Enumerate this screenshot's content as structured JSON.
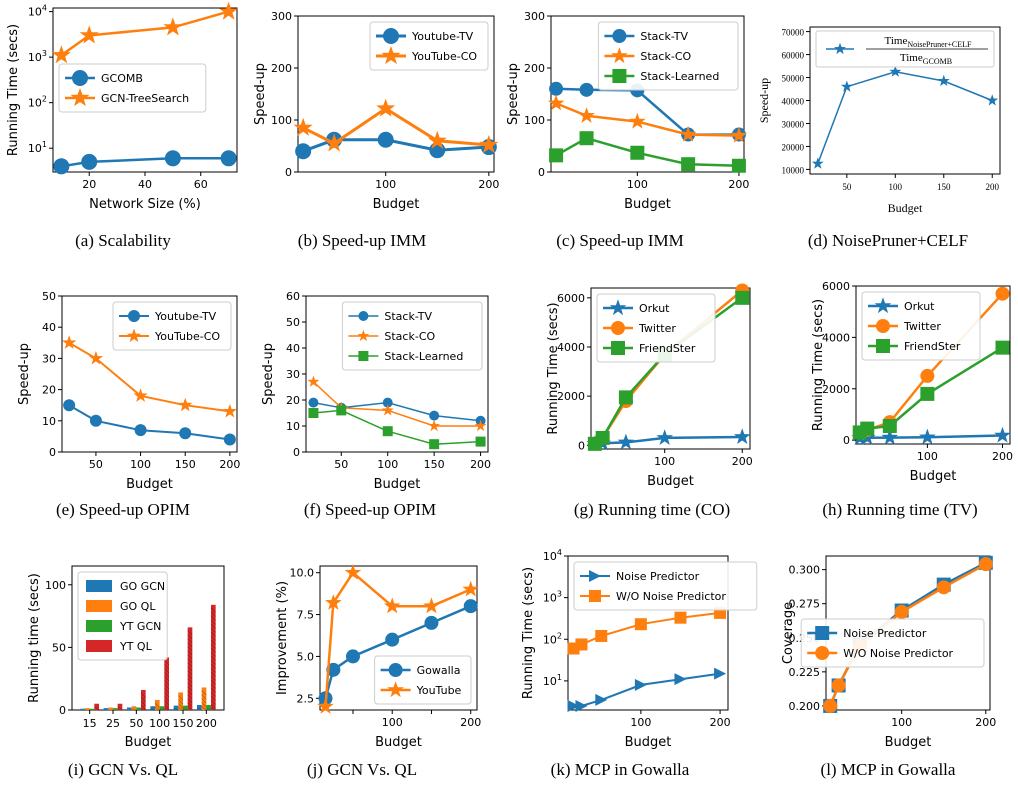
{
  "colors": {
    "blue": "#1f77b4",
    "orange": "#ff7f0e",
    "green": "#2ca02c",
    "red": "#d62728"
  },
  "chart_data": [
    {
      "caption": "(a) Scalability",
      "type": "line",
      "xlabel": "Network Size (%)",
      "ylabel": "Running Time (secs)",
      "xlim": [
        7,
        73
      ],
      "ylim": [
        3,
        12000
      ],
      "yscale": "log",
      "xticks": [
        20,
        40,
        60
      ],
      "xtick_labels": [
        "20",
        "40",
        "60"
      ],
      "yticks": [
        10,
        100,
        1000,
        10000
      ],
      "ytick_labels": [
        "10^1",
        "10^2",
        "10^3",
        "10^4"
      ],
      "legend": "center-left",
      "series": [
        {
          "name": "GCOMB",
          "color": "blue",
          "marker": "circle",
          "x": [
            10,
            20,
            50,
            70
          ],
          "y": [
            4,
            5,
            6,
            6
          ]
        },
        {
          "name": "GCN-TreeSearch",
          "color": "orange",
          "marker": "star",
          "x": [
            10,
            20,
            50,
            70
          ],
          "y": [
            1100,
            3000,
            4500,
            10000
          ]
        }
      ]
    },
    {
      "caption": "(b) Speed-up IMM",
      "type": "line",
      "xlabel": "Budget",
      "ylabel": "Speed-up",
      "xlim": [
        15,
        205
      ],
      "ylim": [
        0,
        300
      ],
      "xticks": [
        100,
        200
      ],
      "xtick_labels": [
        "100",
        "200"
      ],
      "yticks": [
        0,
        100,
        200,
        300
      ],
      "ytick_labels": [
        "0",
        "100",
        "200",
        "300"
      ],
      "legend": "top-right",
      "series": [
        {
          "name": "Youtube-TV",
          "color": "blue",
          "marker": "circle",
          "x": [
            20,
            50,
            100,
            150,
            200
          ],
          "y": [
            40,
            62,
            62,
            42,
            48
          ]
        },
        {
          "name": "YouTube-CO",
          "color": "orange",
          "marker": "star",
          "x": [
            20,
            50,
            100,
            150,
            200
          ],
          "y": [
            85,
            55,
            122,
            60,
            52
          ]
        }
      ]
    },
    {
      "caption": "(c) Speed-up IMM",
      "type": "line",
      "xlabel": "Budget",
      "ylabel": "Speed-up",
      "xlim": [
        15,
        205
      ],
      "ylim": [
        0,
        300
      ],
      "xticks": [
        100,
        200
      ],
      "xtick_labels": [
        "100",
        "200"
      ],
      "yticks": [
        0,
        100,
        200,
        300
      ],
      "ytick_labels": [
        "0",
        "100",
        "200",
        "300"
      ],
      "legend": "top-right",
      "series": [
        {
          "name": "Stack-TV",
          "color": "blue",
          "marker": "circle",
          "x": [
            20,
            50,
            100,
            150,
            200
          ],
          "y": [
            160,
            158,
            157,
            72,
            72
          ]
        },
        {
          "name": "Stack-CO",
          "color": "orange",
          "marker": "star",
          "x": [
            20,
            50,
            100,
            150,
            200
          ],
          "y": [
            132,
            108,
            97,
            72,
            70
          ]
        },
        {
          "name": "Stack-Learned",
          "color": "green",
          "marker": "square",
          "x": [
            20,
            50,
            100,
            150,
            200
          ],
          "y": [
            32,
            65,
            37,
            15,
            12
          ]
        }
      ]
    },
    {
      "caption": "(d) NoisePruner+CELF",
      "type": "line",
      "xlabel": "Budget",
      "ylabel": "Speed-up",
      "xlim": [
        12,
        208
      ],
      "ylim": [
        8000,
        72000
      ],
      "xticks": [
        50,
        100,
        150,
        200
      ],
      "xtick_labels": [
        "50",
        "100",
        "150",
        "200"
      ],
      "yticks": [
        10000,
        20000,
        30000,
        40000,
        50000,
        60000,
        70000
      ],
      "ytick_labels": [
        "10000",
        "20000",
        "30000",
        "40000",
        "50000",
        "60000",
        "70000"
      ],
      "legend": "top-left",
      "legend_numerator": "Time",
      "legend_numerator_sub": "NoisePruner+CELF",
      "legend_denominator": "Time",
      "legend_denominator_sub": "GCOMB",
      "series": [
        {
          "name": "",
          "color": "blue",
          "marker": "star",
          "x": [
            20,
            50,
            100,
            150,
            200
          ],
          "y": [
            12500,
            46000,
            52500,
            48500,
            40000
          ]
        }
      ]
    },
    {
      "caption": "(e) Speed-up OPIM",
      "type": "line",
      "xlabel": "Budget",
      "ylabel": "Speed-up",
      "xlim": [
        12,
        208
      ],
      "ylim": [
        0,
        50
      ],
      "xticks": [
        50,
        100,
        150,
        200
      ],
      "xtick_labels": [
        "50",
        "100",
        "150",
        "200"
      ],
      "yticks": [
        0,
        10,
        20,
        30,
        40,
        50
      ],
      "ytick_labels": [
        "0",
        "10",
        "20",
        "30",
        "40",
        "50"
      ],
      "legend": "top-right",
      "series": [
        {
          "name": "Youtube-TV",
          "color": "blue",
          "marker": "circle",
          "x": [
            20,
            50,
            100,
            150,
            200
          ],
          "y": [
            15,
            10,
            7,
            6,
            4
          ]
        },
        {
          "name": "YouTube-CO",
          "color": "orange",
          "marker": "star",
          "x": [
            20,
            50,
            100,
            150,
            200
          ],
          "y": [
            35,
            30,
            18,
            15,
            13
          ]
        }
      ]
    },
    {
      "caption": "(f) Speed-up OPIM",
      "type": "line",
      "xlabel": "Budget",
      "ylabel": "Speed-up",
      "xlim": [
        12,
        208
      ],
      "ylim": [
        0,
        60
      ],
      "xticks": [
        50,
        100,
        150,
        200
      ],
      "xtick_labels": [
        "50",
        "100",
        "150",
        "200"
      ],
      "yticks": [
        0,
        10,
        20,
        30,
        40,
        50,
        60
      ],
      "ytick_labels": [
        "0",
        "10",
        "20",
        "30",
        "40",
        "50",
        "60"
      ],
      "legend": "top-right",
      "series": [
        {
          "name": "Stack-TV",
          "color": "blue",
          "marker": "circle",
          "x": [
            20,
            50,
            100,
            150,
            200
          ],
          "y": [
            19,
            17,
            19,
            14,
            12
          ]
        },
        {
          "name": "Stack-CO",
          "color": "orange",
          "marker": "star",
          "x": [
            20,
            50,
            100,
            150,
            200
          ],
          "y": [
            27,
            17,
            16,
            10,
            10
          ]
        },
        {
          "name": "Stack-Learned",
          "color": "green",
          "marker": "square",
          "x": [
            20,
            50,
            100,
            150,
            200
          ],
          "y": [
            15,
            16,
            8,
            3,
            4
          ]
        }
      ]
    },
    {
      "caption": "(g) Running time (CO)",
      "type": "line",
      "xlabel": "Budget",
      "ylabel": "Running Time (secs)",
      "xlim": [
        5,
        210
      ],
      "ylim": [
        -150,
        6400
      ],
      "xticks": [
        100,
        200
      ],
      "xtick_labels": [
        "100",
        "200"
      ],
      "yticks": [
        0,
        2000,
        4000,
        6000
      ],
      "ytick_labels": [
        "0",
        "2000",
        "4000",
        "6000"
      ],
      "legend": "top-left",
      "series": [
        {
          "name": "Orkut",
          "color": "blue",
          "marker": "star",
          "x": [
            10,
            20,
            50,
            100,
            200
          ],
          "y": [
            60,
            80,
            120,
            300,
            340
          ]
        },
        {
          "name": "Twitter",
          "color": "orange",
          "marker": "circle",
          "x": [
            10,
            20,
            50,
            100,
            200
          ],
          "y": [
            60,
            300,
            1800,
            3700,
            6300
          ]
        },
        {
          "name": "FriendSter",
          "color": "green",
          "marker": "square",
          "x": [
            10,
            20,
            50,
            100,
            200
          ],
          "y": [
            60,
            300,
            1950,
            3700,
            6000
          ]
        }
      ]
    },
    {
      "caption": "(h) Running time (TV)",
      "type": "line",
      "xlabel": "Budget",
      "ylabel": "Running Time (secs)",
      "xlim": [
        5,
        210
      ],
      "ylim": [
        -150,
        6000
      ],
      "xticks": [
        100,
        200
      ],
      "xtick_labels": [
        "100",
        "200"
      ],
      "yticks": [
        0,
        2000,
        4000,
        6000
      ],
      "ytick_labels": [
        "0",
        "2000",
        "4000",
        "6000"
      ],
      "legend": "top-left",
      "series": [
        {
          "name": "Orkut",
          "color": "blue",
          "marker": "star",
          "x": [
            10,
            20,
            50,
            100,
            200
          ],
          "y": [
            80,
            90,
            100,
            110,
            180
          ]
        },
        {
          "name": "Twitter",
          "color": "orange",
          "marker": "circle",
          "x": [
            10,
            20,
            50,
            100,
            200
          ],
          "y": [
            300,
            400,
            700,
            2500,
            5700
          ]
        },
        {
          "name": "FriendSter",
          "color": "green",
          "marker": "square",
          "x": [
            10,
            20,
            50,
            100,
            200
          ],
          "y": [
            300,
            450,
            550,
            1800,
            3600
          ]
        }
      ]
    },
    {
      "caption": "(i) GCN Vs. QL",
      "type": "bar",
      "xlabel": "Budget",
      "ylabel": "Running time (secs)",
      "ylim": [
        0,
        115
      ],
      "categories": [
        "15",
        "25",
        "50",
        "100",
        "150",
        "200"
      ],
      "yticks": [
        0,
        50,
        100
      ],
      "ytick_labels": [
        "0",
        "50",
        "100"
      ],
      "legend": "top-left",
      "series": [
        {
          "name": "GO GCN",
          "color": "blue",
          "values": [
            1,
            1.5,
            2,
            3,
            3.5,
            4
          ]
        },
        {
          "name": "GO QL",
          "color": "orange",
          "values": [
            1.5,
            2,
            3,
            8,
            14,
            18
          ]
        },
        {
          "name": "YT GCN",
          "color": "green",
          "values": [
            1,
            1.5,
            2,
            3,
            3.5,
            4
          ]
        },
        {
          "name": "YT QL",
          "color": "red",
          "values": [
            5,
            5,
            16,
            42,
            66,
            84
          ]
        }
      ]
    },
    {
      "caption": "(j) GCN Vs. QL",
      "type": "line",
      "xlabel": "Budget",
      "ylabel": "Improvement (%)",
      "xlim": [
        8,
        208
      ],
      "ylim": [
        1.8,
        10.4
      ],
      "xticks": [
        50,
        100,
        150,
        200
      ],
      "xtick_labels": [
        "",
        "100",
        "",
        "200"
      ],
      "yticks": [
        2.5,
        5.0,
        7.5,
        10.0
      ],
      "ytick_labels": [
        "2.5",
        "5.0",
        "7.5",
        "10.0"
      ],
      "legend": "bottom-right",
      "series": [
        {
          "name": "Gowalla",
          "color": "blue",
          "marker": "circle",
          "x": [
            15,
            25,
            50,
            100,
            150,
            200
          ],
          "y": [
            2.5,
            4.2,
            5.0,
            6.0,
            7.0,
            8.0
          ]
        },
        {
          "name": "YouTube",
          "color": "orange",
          "marker": "star",
          "x": [
            15,
            25,
            50,
            100,
            150,
            200
          ],
          "y": [
            2.0,
            8.2,
            10.0,
            8.0,
            8.0,
            9.0
          ]
        }
      ]
    },
    {
      "caption": "(k) MCP in Gowalla",
      "type": "line",
      "xlabel": "Budget",
      "ylabel": "Running Time (secs)",
      "xlim": [
        8,
        210
      ],
      "ylim": [
        2,
        10000
      ],
      "yscale": "log",
      "xticks": [
        100,
        200
      ],
      "xtick_labels": [
        "100",
        "200"
      ],
      "yticks": [
        10,
        100,
        1000,
        10000
      ],
      "ytick_labels": [
        "10^1",
        "10^2",
        "10^3",
        "10^4"
      ],
      "legend": "top-left",
      "series": [
        {
          "name": "Noise Predictor",
          "color": "blue",
          "marker": "triangle-right",
          "x": [
            15,
            25,
            50,
            100,
            150,
            200
          ],
          "y": [
            2.5,
            2.5,
            3.5,
            8,
            11,
            15
          ]
        },
        {
          "name": "W/O Noise Predictor",
          "color": "orange",
          "marker": "square",
          "x": [
            15,
            25,
            50,
            100,
            150,
            200
          ],
          "y": [
            60,
            75,
            120,
            230,
            330,
            430
          ]
        }
      ]
    },
    {
      "caption": "(l) MCP in Gowalla",
      "type": "line",
      "xlabel": "Budget",
      "ylabel": "Coverage",
      "xlim": [
        10,
        205
      ],
      "ylim": [
        0.197,
        0.31
      ],
      "xticks": [
        100,
        200
      ],
      "xtick_labels": [
        "100",
        "200"
      ],
      "yticks": [
        0.2,
        0.225,
        0.25,
        0.275,
        0.3
      ],
      "ytick_labels": [
        "0.200",
        "0.225",
        "0.250",
        "0.275",
        "0.300"
      ],
      "legend": "center-right",
      "series": [
        {
          "name": "Noise Predictor",
          "color": "blue",
          "marker": "square",
          "x": [
            15,
            25,
            50,
            100,
            150,
            200
          ],
          "y": [
            0.2,
            0.215,
            0.245,
            0.27,
            0.289,
            0.305
          ]
        },
        {
          "name": "W/O Noise Predictor",
          "color": "orange",
          "marker": "circle",
          "x": [
            15,
            25,
            50,
            100,
            150,
            200
          ],
          "y": [
            0.2,
            0.215,
            0.244,
            0.269,
            0.287,
            0.304
          ]
        }
      ]
    }
  ]
}
